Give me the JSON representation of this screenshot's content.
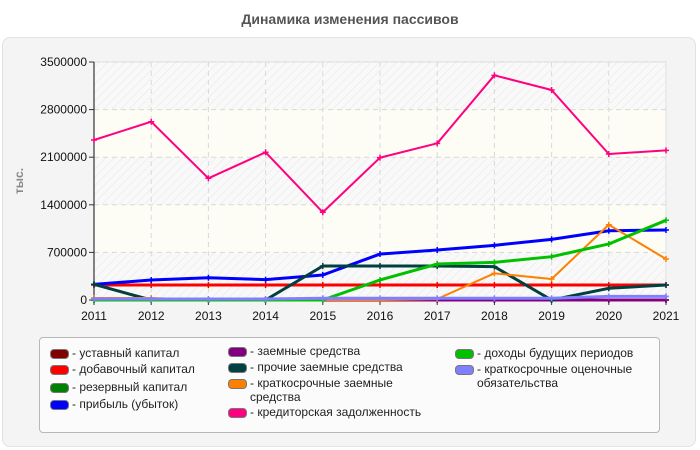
{
  "title": "Динамика изменения пассивов",
  "colors": {
    "panel_bg": "#f4f4f4",
    "plot_bg": "#fbfbf4",
    "grid": "#d9d9d9",
    "axis": "#333333"
  },
  "chart_data": {
    "type": "line",
    "title": "Динамика изменения пассивов",
    "xlabel": "",
    "ylabel": "тыс.",
    "ylim": [
      0,
      3500000
    ],
    "yticks": [
      0,
      700000,
      1400000,
      2100000,
      2800000,
      3500000
    ],
    "grid": true,
    "legend_position": "bottom",
    "x": [
      "2011",
      "2012",
      "2013",
      "2014",
      "2015",
      "2016",
      "2017",
      "2018",
      "2019",
      "2020",
      "2021"
    ],
    "series": [
      {
        "name": "уставный капитал",
        "color": "#800000",
        "values": [
          0,
          0,
          0,
          0,
          0,
          0,
          0,
          0,
          0,
          0,
          0
        ]
      },
      {
        "name": "добавочный капитал",
        "color": "#ff0000",
        "values": [
          220000,
          220000,
          220000,
          220000,
          220000,
          220000,
          220000,
          220000,
          220000,
          220000,
          220000
        ]
      },
      {
        "name": "резервный капитал",
        "color": "#008000",
        "values": [
          0,
          0,
          0,
          0,
          0,
          0,
          0,
          0,
          0,
          0,
          0
        ]
      },
      {
        "name": "прибыль (убыток)",
        "color": "#0000ff",
        "values": [
          230000,
          294000,
          328000,
          299000,
          368000,
          676000,
          735000,
          804000,
          892000,
          1019000,
          1029000
        ]
      },
      {
        "name": "заемные средства",
        "color": "#800080",
        "values": [
          0,
          0,
          0,
          0,
          0,
          0,
          0,
          0,
          0,
          0,
          0
        ]
      },
      {
        "name": "прочие заемные средства",
        "color": "#004040",
        "values": [
          230000,
          0,
          0,
          0,
          500000,
          500000,
          500000,
          490000,
          0,
          172000,
          220000
        ]
      },
      {
        "name": "краткосрочные заемные средства",
        "color": "#ff8000",
        "values": [
          30000,
          30000,
          0,
          0,
          0,
          0,
          15000,
          392000,
          309000,
          1107000,
          603000
        ]
      },
      {
        "name": "кредиторская задолженность",
        "color": "#ff0080",
        "values": [
          2353000,
          2622000,
          1790000,
          2172000,
          1290000,
          2093000,
          2304000,
          3304000,
          3088000,
          2147000,
          2201000
        ]
      },
      {
        "name": "доходы будущих периодов",
        "color": "#00c000",
        "values": [
          0,
          0,
          0,
          0,
          0,
          294000,
          529000,
          554000,
          637000,
          824000,
          1172000
        ]
      },
      {
        "name": "краткосрочные оценочные обязательства",
        "color": "#8080ff",
        "values": [
          15000,
          15000,
          15000,
          15000,
          25000,
          25000,
          25000,
          25000,
          25000,
          54000,
          54000
        ]
      }
    ]
  },
  "legend": [
    {
      "label": "- уставный капитал",
      "color": "#800000"
    },
    {
      "label": "- добавочный капитал",
      "color": "#ff0000"
    },
    {
      "label": "- резервный капитал",
      "color": "#008000"
    },
    {
      "label": "- прибыль (убыток)",
      "color": "#0000ff"
    },
    {
      "label": "- заемные средства",
      "color": "#800080"
    },
    {
      "label": "- прочие заемные средства",
      "color": "#004040"
    },
    {
      "label": "- краткосрочные заемные\nсредства",
      "color": "#ff8000"
    },
    {
      "label": "- кредиторская задолженность",
      "color": "#ff0080"
    },
    {
      "label": "- доходы будущих периодов",
      "color": "#00c000"
    },
    {
      "label": "- краткосрочные оценочные\nобязательства",
      "color": "#8080ff"
    }
  ]
}
